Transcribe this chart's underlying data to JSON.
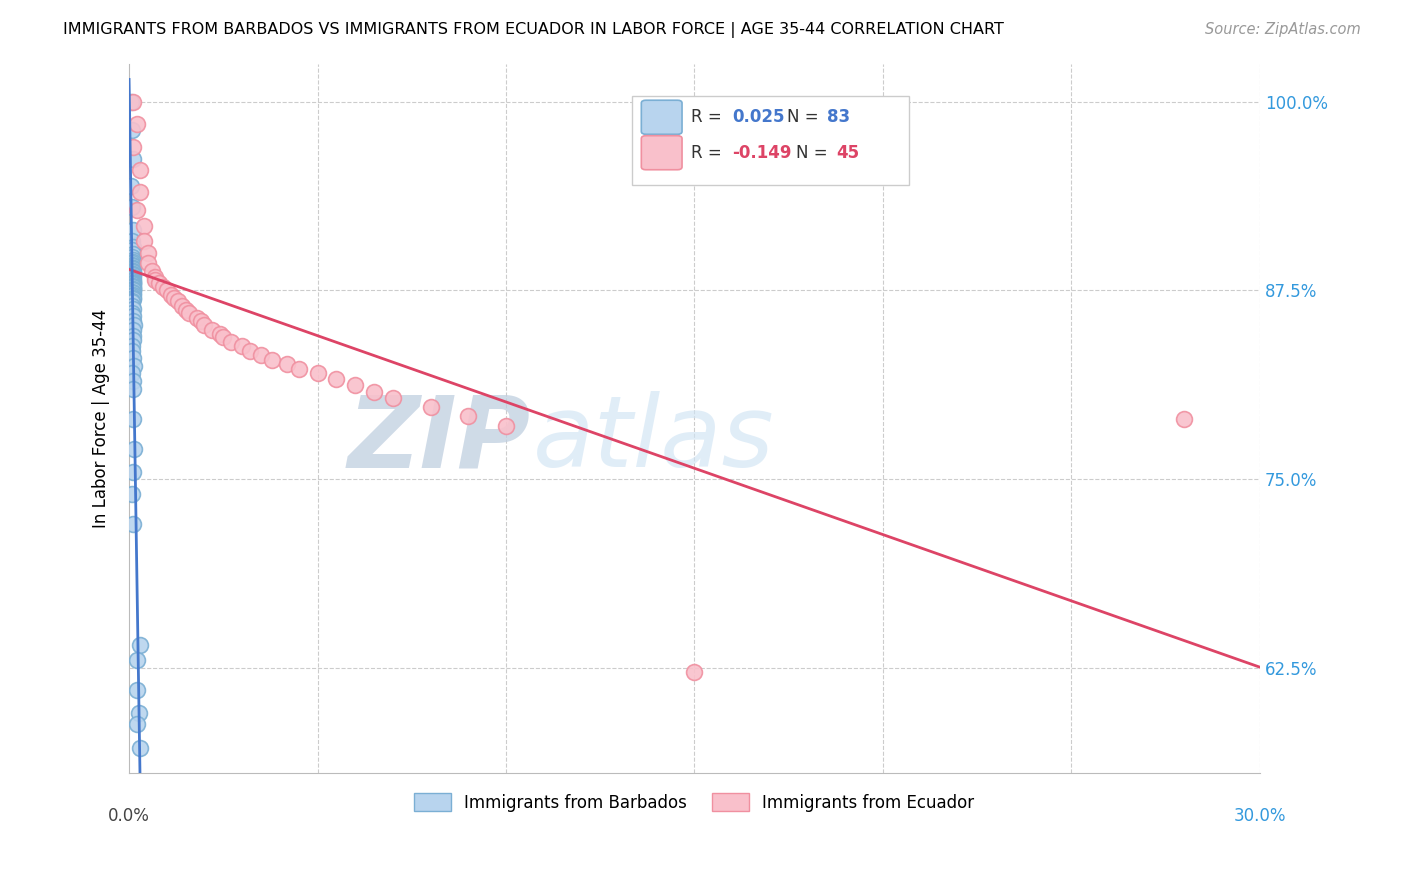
{
  "title": "IMMIGRANTS FROM BARBADOS VS IMMIGRANTS FROM ECUADOR IN LABOR FORCE | AGE 35-44 CORRELATION CHART",
  "source": "Source: ZipAtlas.com",
  "ylabel_label": "In Labor Force | Age 35-44",
  "legend_blue_r": "0.025",
  "legend_blue_n": "83",
  "legend_pink_r": "-0.149",
  "legend_pink_n": "45",
  "legend_label_blue": "Immigrants from Barbados",
  "legend_label_pink": "Immigrants from Ecuador",
  "blue_fill": "#b8d4ee",
  "pink_fill": "#f9c0cb",
  "blue_edge": "#7bafd4",
  "pink_edge": "#f090a0",
  "trend_blue": "#4477cc",
  "trend_pink": "#dd4466",
  "bg_color": "#ffffff",
  "grid_color": "#cccccc",
  "xlim": [
    0.0,
    0.3
  ],
  "ylim": [
    0.555,
    1.025
  ],
  "yticks": [
    0.625,
    0.75,
    0.875,
    1.0
  ],
  "xticks": [
    0.0,
    0.05,
    0.1,
    0.15,
    0.2,
    0.25,
    0.3
  ],
  "blue_x": [
    0.0005,
    0.0008,
    0.001,
    0.0005,
    0.0008,
    0.001,
    0.0008,
    0.001,
    0.0008,
    0.001,
    0.0008,
    0.001,
    0.001,
    0.0008,
    0.0008,
    0.001,
    0.001,
    0.0008,
    0.001,
    0.0008,
    0.001,
    0.0008,
    0.001,
    0.0008,
    0.001,
    0.0008,
    0.001,
    0.0008,
    0.001,
    0.0008,
    0.001,
    0.0008,
    0.001,
    0.0008,
    0.001,
    0.0008,
    0.001,
    0.001,
    0.0008,
    0.0008,
    0.0008,
    0.001,
    0.0008,
    0.001,
    0.001,
    0.001,
    0.0008,
    0.001,
    0.0008,
    0.001,
    0.001,
    0.0008,
    0.001,
    0.001,
    0.0008,
    0.0008,
    0.0008,
    0.001,
    0.0008,
    0.001,
    0.001,
    0.0012,
    0.001,
    0.001,
    0.001,
    0.0008,
    0.0008,
    0.001,
    0.0012,
    0.0008,
    0.001,
    0.001,
    0.001,
    0.0012,
    0.001,
    0.0008,
    0.001,
    0.003,
    0.002,
    0.002,
    0.0025,
    0.002,
    0.003
  ],
  "blue_y": [
    1.0,
    0.981,
    0.962,
    0.944,
    0.93,
    0.915,
    0.908,
    0.904,
    0.902,
    0.899,
    0.897,
    0.895,
    0.894,
    0.893,
    0.892,
    0.891,
    0.89,
    0.89,
    0.889,
    0.888,
    0.888,
    0.887,
    0.887,
    0.886,
    0.886,
    0.885,
    0.885,
    0.884,
    0.884,
    0.883,
    0.882,
    0.882,
    0.881,
    0.881,
    0.88,
    0.88,
    0.88,
    0.879,
    0.879,
    0.878,
    0.878,
    0.877,
    0.877,
    0.877,
    0.876,
    0.875,
    0.875,
    0.875,
    0.874,
    0.873,
    0.872,
    0.871,
    0.87,
    0.869,
    0.868,
    0.867,
    0.865,
    0.863,
    0.86,
    0.858,
    0.855,
    0.852,
    0.849,
    0.845,
    0.842,
    0.838,
    0.835,
    0.83,
    0.825,
    0.82,
    0.815,
    0.81,
    0.79,
    0.77,
    0.755,
    0.74,
    0.72,
    0.64,
    0.63,
    0.61,
    0.595,
    0.588,
    0.572
  ],
  "pink_x": [
    0.001,
    0.002,
    0.001,
    0.003,
    0.003,
    0.002,
    0.004,
    0.004,
    0.005,
    0.005,
    0.006,
    0.007,
    0.007,
    0.008,
    0.009,
    0.01,
    0.011,
    0.012,
    0.013,
    0.014,
    0.015,
    0.016,
    0.018,
    0.019,
    0.02,
    0.022,
    0.024,
    0.025,
    0.027,
    0.03,
    0.032,
    0.035,
    0.038,
    0.042,
    0.045,
    0.05,
    0.055,
    0.06,
    0.065,
    0.07,
    0.08,
    0.09,
    0.1,
    0.15,
    0.28
  ],
  "pink_y": [
    1.0,
    0.985,
    0.97,
    0.955,
    0.94,
    0.928,
    0.918,
    0.908,
    0.9,
    0.893,
    0.888,
    0.884,
    0.882,
    0.88,
    0.877,
    0.875,
    0.872,
    0.87,
    0.868,
    0.865,
    0.862,
    0.86,
    0.857,
    0.855,
    0.852,
    0.849,
    0.846,
    0.844,
    0.841,
    0.838,
    0.835,
    0.832,
    0.829,
    0.826,
    0.823,
    0.82,
    0.816,
    0.812,
    0.808,
    0.804,
    0.798,
    0.792,
    0.785,
    0.622,
    0.79
  ],
  "blue_trend_start_x": 0.0,
  "blue_trend_end_x": 0.3,
  "pink_trend_start_x": 0.0,
  "pink_trend_end_x": 0.3
}
